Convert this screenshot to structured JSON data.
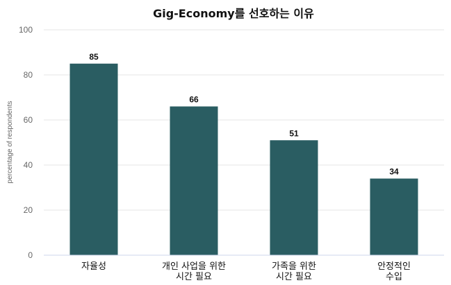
{
  "chart_data": {
    "type": "bar",
    "title": "Gig-Economy를 선호하는 이유",
    "ylabel": "percentage of respondents",
    "xlabel": "",
    "categories": [
      [
        "자율성"
      ],
      [
        "개인 사업을 위한",
        "시간 필요"
      ],
      [
        "가족을 위한",
        "시간 필요"
      ],
      [
        "안정적인",
        "수입"
      ]
    ],
    "values": [
      85,
      66,
      51,
      34
    ],
    "ylim": [
      0,
      100
    ],
    "yticks": [
      0,
      20,
      40,
      60,
      80,
      100
    ],
    "grid": true,
    "legend": "none",
    "bar_color": "#2a5d62"
  }
}
